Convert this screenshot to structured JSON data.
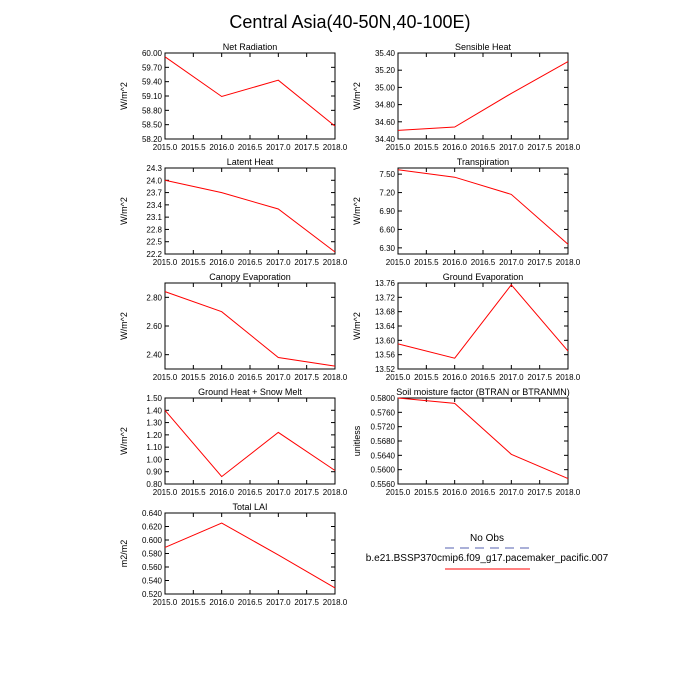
{
  "figure_title": "Central Asia(40-50N,40-100E)",
  "legend": {
    "obs_label": "No Obs",
    "model_label": "b.e21.BSSP370cmip6.f09_g17.pacemaker_pacific.007",
    "obs_color": "#aab0d8",
    "model_color": "#ff0000"
  },
  "chart_data": [
    {
      "type": "line",
      "title": "Net Radiation",
      "ylabel": "W/m^2",
      "xlabel": "",
      "x": [
        2015,
        2016,
        2017,
        2018
      ],
      "series": [
        {
          "name": "b.e21.BSSP370cmip6.f09_g17.pacemaker_pacific.007",
          "values": [
            59.92,
            59.09,
            59.43,
            58.47
          ]
        }
      ],
      "xlim": [
        2015,
        2018
      ],
      "ylim": [
        58.2,
        60.0
      ],
      "xticks": [
        "2015.0",
        "2015.5",
        "2016.0",
        "2016.5",
        "2017.0",
        "2017.5",
        "2018.0"
      ],
      "yticks": [
        "58.20",
        "58.50",
        "58.80",
        "59.10",
        "59.40",
        "59.70",
        "60.00"
      ]
    },
    {
      "type": "line",
      "title": "Sensible Heat",
      "ylabel": "W/m^2",
      "xlabel": "",
      "x": [
        2015,
        2016,
        2017,
        2018
      ],
      "series": [
        {
          "name": "b.e21.BSSP370cmip6.f09_g17.pacemaker_pacific.007",
          "values": [
            34.5,
            34.54,
            34.93,
            35.3
          ]
        }
      ],
      "xlim": [
        2015,
        2018
      ],
      "ylim": [
        34.4,
        35.4
      ],
      "xticks": [
        "2015.0",
        "2015.5",
        "2016.0",
        "2016.5",
        "2017.0",
        "2017.5",
        "2018.0"
      ],
      "yticks": [
        "34.40",
        "34.60",
        "34.80",
        "35.00",
        "35.20",
        "35.40"
      ]
    },
    {
      "type": "line",
      "title": "Latent Heat",
      "ylabel": "W/m^2",
      "xlabel": "",
      "x": [
        2015,
        2016,
        2017,
        2018
      ],
      "series": [
        {
          "name": "b.e21.BSSP370cmip6.f09_g17.pacemaker_pacific.007",
          "values": [
            24.0,
            23.7,
            23.3,
            22.25
          ]
        }
      ],
      "xlim": [
        2015,
        2018
      ],
      "ylim": [
        22.2,
        24.3
      ],
      "xticks": [
        "2015.0",
        "2015.5",
        "2016.0",
        "2016.5",
        "2017.0",
        "2017.5",
        "2018.0"
      ],
      "yticks": [
        "22.2",
        "22.5",
        "22.8",
        "23.1",
        "23.4",
        "23.7",
        "24.0",
        "24.3"
      ]
    },
    {
      "type": "line",
      "title": "Transpiration",
      "ylabel": "W/m^2",
      "xlabel": "",
      "x": [
        2015,
        2016,
        2017,
        2018
      ],
      "series": [
        {
          "name": "b.e21.BSSP370cmip6.f09_g17.pacemaker_pacific.007",
          "values": [
            7.57,
            7.45,
            7.17,
            6.36
          ]
        }
      ],
      "xlim": [
        2015,
        2018
      ],
      "ylim": [
        6.2,
        7.6
      ],
      "xticks": [
        "2015.0",
        "2015.5",
        "2016.0",
        "2016.5",
        "2017.0",
        "2017.5",
        "2018.0"
      ],
      "yticks": [
        "6.30",
        "6.60",
        "6.90",
        "7.20",
        "7.50"
      ]
    },
    {
      "type": "line",
      "title": "Canopy Evaporation",
      "ylabel": "W/m^2",
      "xlabel": "",
      "x": [
        2015,
        2016,
        2017,
        2018
      ],
      "series": [
        {
          "name": "b.e21.BSSP370cmip6.f09_g17.pacemaker_pacific.007",
          "values": [
            2.84,
            2.7,
            2.38,
            2.32
          ]
        }
      ],
      "xlim": [
        2015,
        2018
      ],
      "ylim": [
        2.3,
        2.9
      ],
      "xticks": [
        "2015.0",
        "2015.5",
        "2016.0",
        "2016.5",
        "2017.0",
        "2017.5",
        "2018.0"
      ],
      "yticks": [
        "2.40",
        "2.60",
        "2.80"
      ]
    },
    {
      "type": "line",
      "title": "Ground Evaporation",
      "ylabel": "W/m^2",
      "xlabel": "",
      "x": [
        2015,
        2016,
        2017,
        2018
      ],
      "series": [
        {
          "name": "b.e21.BSSP370cmip6.f09_g17.pacemaker_pacific.007",
          "values": [
            13.59,
            13.55,
            13.755,
            13.57
          ]
        }
      ],
      "xlim": [
        2015,
        2018
      ],
      "ylim": [
        13.52,
        13.76
      ],
      "xticks": [
        "2015.0",
        "2015.5",
        "2016.0",
        "2016.5",
        "2017.0",
        "2017.5",
        "2018.0"
      ],
      "yticks": [
        "13.52",
        "13.56",
        "13.60",
        "13.64",
        "13.68",
        "13.72",
        "13.76"
      ]
    },
    {
      "type": "line",
      "title": "Ground Heat + Snow Melt",
      "ylabel": "W/m^2",
      "xlabel": "",
      "x": [
        2015,
        2016,
        2017,
        2018
      ],
      "series": [
        {
          "name": "b.e21.BSSP370cmip6.f09_g17.pacemaker_pacific.007",
          "values": [
            1.4,
            0.86,
            1.22,
            0.91
          ]
        }
      ],
      "xlim": [
        2015,
        2018
      ],
      "ylim": [
        0.8,
        1.5
      ],
      "xticks": [
        "2015.0",
        "2015.5",
        "2016.0",
        "2016.5",
        "2017.0",
        "2017.5",
        "2018.0"
      ],
      "yticks": [
        "0.80",
        "0.90",
        "1.00",
        "1.10",
        "1.20",
        "1.30",
        "1.40",
        "1.50"
      ]
    },
    {
      "type": "line",
      "title": "Soil moisture factor (BTRAN or BTRANMN)",
      "ylabel": "unitless",
      "xlabel": "",
      "x": [
        2015,
        2016,
        2017,
        2018
      ],
      "series": [
        {
          "name": "b.e21.BSSP370cmip6.f09_g17.pacemaker_pacific.007",
          "values": [
            0.58,
            0.5785,
            0.5643,
            0.5575
          ]
        }
      ],
      "xlim": [
        2015,
        2018
      ],
      "ylim": [
        0.556,
        0.58
      ],
      "xticks": [
        "2015.0",
        "2015.5",
        "2016.0",
        "2016.5",
        "2017.0",
        "2017.5",
        "2018.0"
      ],
      "yticks": [
        "0.5560",
        "0.5600",
        "0.5640",
        "0.5680",
        "0.5720",
        "0.5760",
        "0.5800"
      ]
    },
    {
      "type": "line",
      "title": "Total LAI",
      "ylabel": "m2/m2",
      "xlabel": "",
      "x": [
        2015,
        2016,
        2017,
        2018
      ],
      "series": [
        {
          "name": "b.e21.BSSP370cmip6.f09_g17.pacemaker_pacific.007",
          "values": [
            0.589,
            0.625,
            0.578,
            0.529
          ]
        }
      ],
      "xlim": [
        2015,
        2018
      ],
      "ylim": [
        0.52,
        0.64
      ],
      "xticks": [
        "2015.0",
        "2015.5",
        "2016.0",
        "2016.5",
        "2017.0",
        "2017.5",
        "2018.0"
      ],
      "yticks": [
        "0.520",
        "0.540",
        "0.560",
        "0.580",
        "0.600",
        "0.620",
        "0.640"
      ]
    }
  ]
}
